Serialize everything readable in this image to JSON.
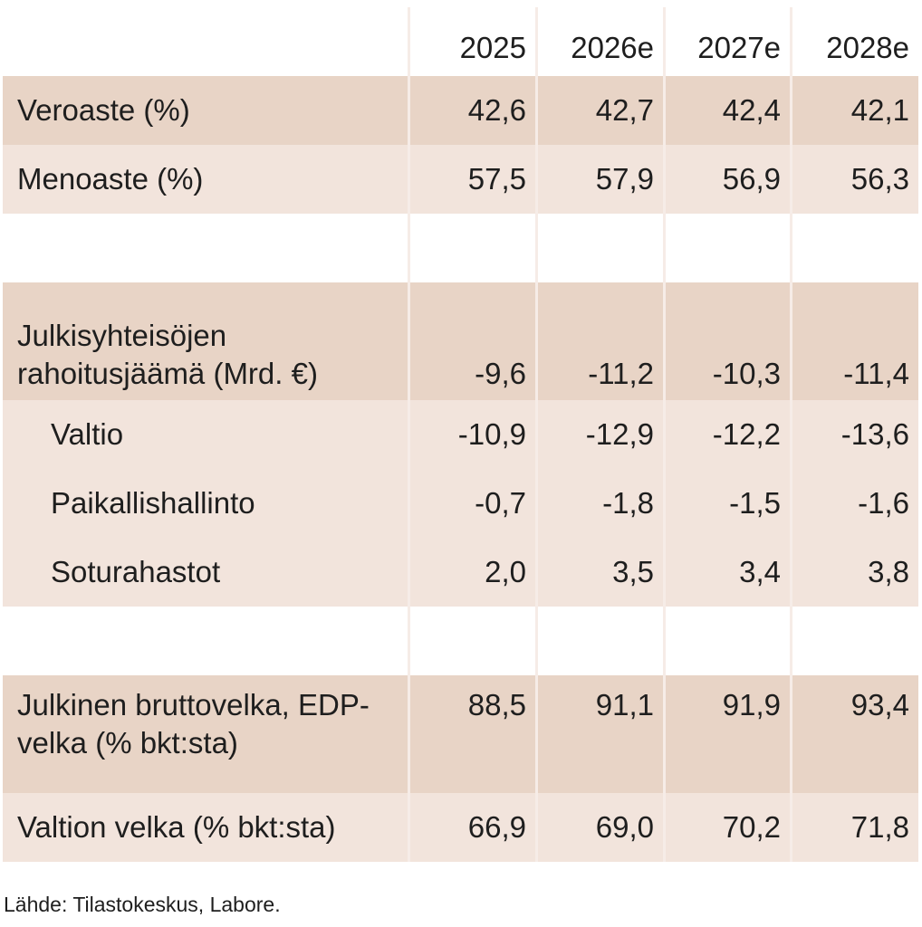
{
  "chart_data": {
    "type": "table",
    "columns": [
      "",
      "2025",
      "2026e",
      "2027e",
      "2028e"
    ],
    "rows": [
      {
        "label": "Veroaste (%)",
        "values": [
          "42,6",
          "42,7",
          "42,4",
          "42,1"
        ]
      },
      {
        "label": "Menoaste (%)",
        "values": [
          "57,5",
          "57,9",
          "56,9",
          "56,3"
        ]
      },
      {
        "label": "Julkisyhteisöjen rahoitusjäämä (Mrd. €)",
        "values": [
          "-9,6",
          "-11,2",
          "-10,3",
          "-11,4"
        ]
      },
      {
        "label": "Valtio",
        "values": [
          "-10,9",
          "-12,9",
          "-12,2",
          "-13,6"
        ]
      },
      {
        "label": "Paikallishallinto",
        "values": [
          "-0,7",
          "-1,8",
          "-1,5",
          "-1,6"
        ]
      },
      {
        "label": "Soturahastot",
        "values": [
          "2,0",
          "3,5",
          "3,4",
          "3,8"
        ]
      },
      {
        "label": "Julkinen bruttovelka, EDP-velka (% bkt:sta)",
        "values": [
          "88,5",
          "91,1",
          "91,9",
          "93,4"
        ]
      },
      {
        "label": "Valtion velka (% bkt:sta)",
        "values": [
          "66,9",
          "69,0",
          "70,2",
          "71,8"
        ]
      }
    ],
    "source": "Lähde: Tilastokeskus, Labore.",
    "colors": {
      "dark_row": "#e8d4c6",
      "light_row": "#f2e4dc"
    }
  }
}
